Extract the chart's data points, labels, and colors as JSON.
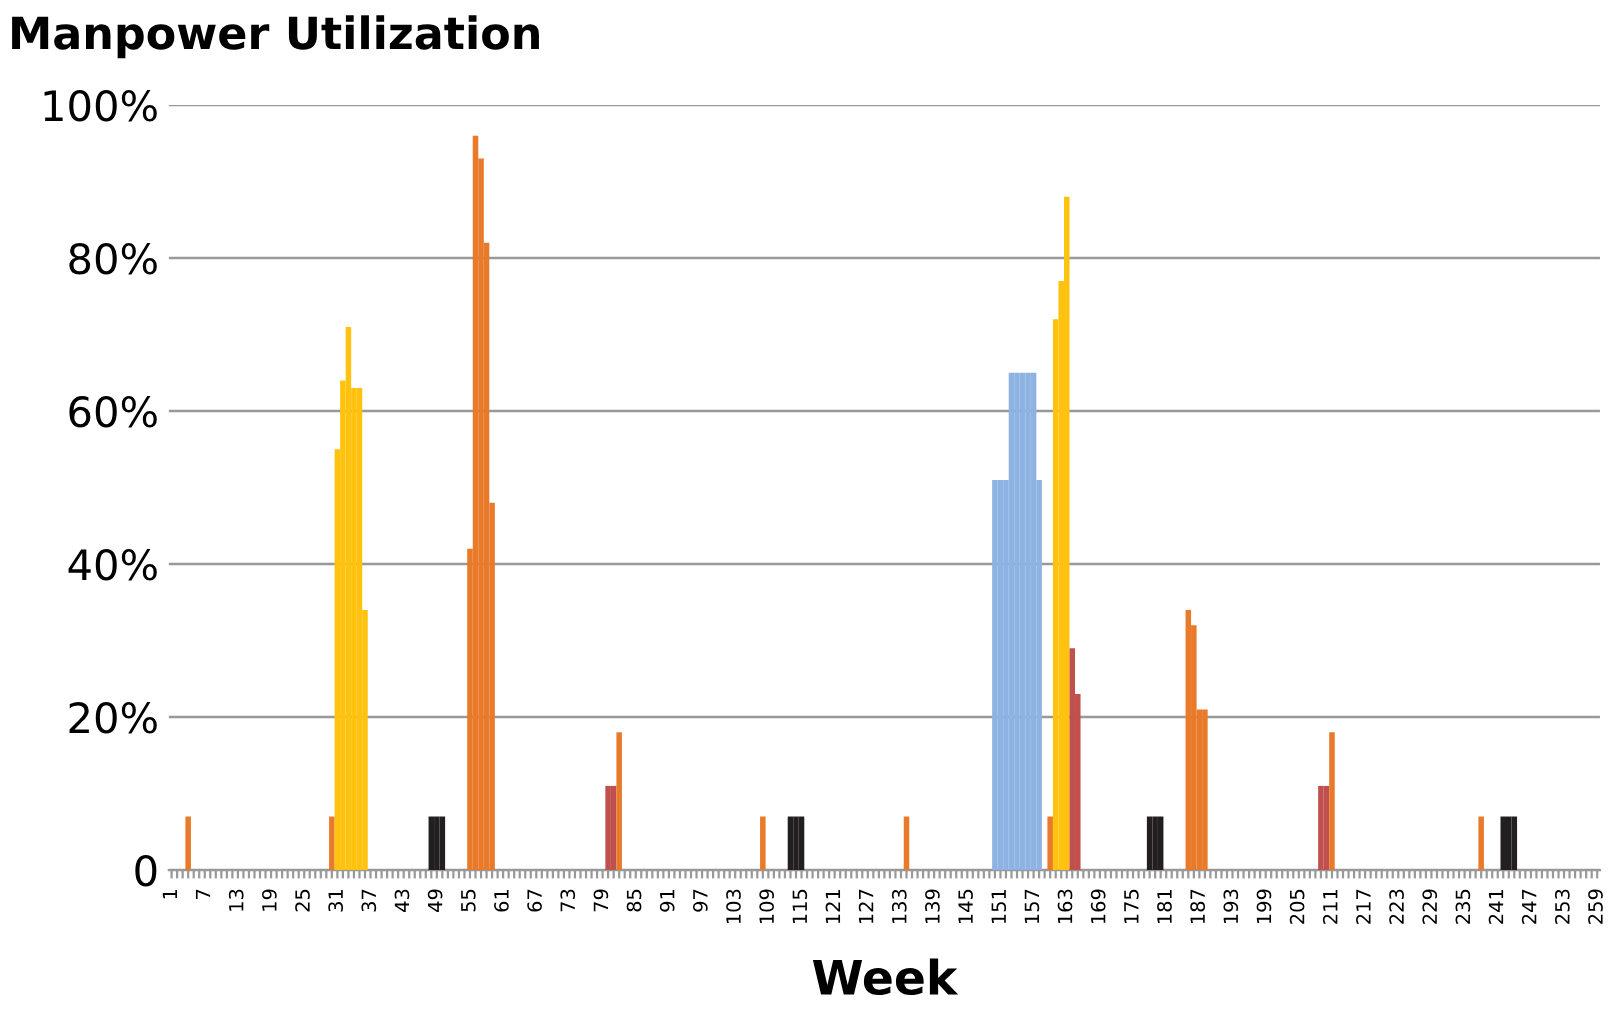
{
  "chart_data": {
    "type": "bar",
    "title": "Manpower Utilization",
    "xlabel": "Week",
    "categories": [
      "1",
      null,
      null,
      null,
      null,
      null,
      "7",
      null,
      null,
      null,
      null,
      null,
      "13",
      null,
      null,
      null,
      null,
      null,
      "19",
      null,
      null,
      null,
      null,
      null,
      "25",
      null,
      null,
      null,
      null,
      null,
      "31",
      null,
      null,
      null,
      null,
      null,
      "37",
      null,
      null,
      null,
      null,
      null,
      "43",
      null,
      null,
      null,
      null,
      null,
      "49",
      null,
      null,
      null,
      null,
      null,
      "55",
      null,
      null,
      null,
      null,
      null,
      "61",
      null,
      null,
      null,
      null,
      null,
      "67",
      null,
      null,
      null,
      null,
      null,
      "73",
      null,
      null,
      null,
      null,
      null,
      "79",
      null,
      null,
      null,
      null,
      null,
      "85",
      null,
      null,
      null,
      null,
      null,
      "91",
      null,
      null,
      null,
      null,
      null,
      "97",
      null,
      null,
      null,
      null,
      null,
      "103",
      null,
      null,
      null,
      null,
      null,
      "109",
      null,
      null,
      null,
      null,
      null,
      "115",
      null,
      null,
      null,
      null,
      null,
      "121",
      null,
      null,
      null,
      null,
      null,
      "127",
      null,
      null,
      null,
      null,
      null,
      "133",
      null,
      null,
      null,
      null,
      null,
      "139",
      null,
      null,
      null,
      null,
      null,
      "145",
      null,
      null,
      null,
      null,
      null,
      "151",
      null,
      null,
      null,
      null,
      null,
      "157",
      null,
      null,
      null,
      null,
      null,
      "163",
      null,
      null,
      null,
      null,
      null,
      "169",
      null,
      null,
      null,
      null,
      null,
      "175",
      null,
      null,
      null,
      null,
      null,
      "181",
      null,
      null,
      null,
      null,
      null,
      "187",
      null,
      null,
      null,
      null,
      null,
      "193",
      null,
      null,
      null,
      null,
      null,
      "199",
      null,
      null,
      null,
      null,
      null,
      "205",
      null,
      null,
      null,
      null,
      null,
      "211",
      null,
      null,
      null,
      null,
      null,
      "217",
      null,
      null,
      null,
      null,
      null,
      "223",
      null,
      null,
      null,
      null,
      null,
      "229",
      null,
      null,
      null,
      null,
      null,
      "235",
      null,
      null,
      null,
      null,
      null,
      "241",
      null,
      null,
      null,
      null,
      null,
      "247",
      null,
      null,
      null,
      null,
      null,
      "253",
      null,
      null,
      null,
      null,
      null,
      "259"
    ],
    "values": [
      0,
      0,
      0,
      7,
      0,
      0,
      0,
      0,
      0,
      0,
      0,
      0,
      0,
      0,
      0,
      0,
      0,
      0,
      0,
      0,
      0,
      0,
      0,
      0,
      0,
      0,
      0,
      0,
      0,
      7,
      55,
      64,
      71,
      63,
      63,
      34,
      0,
      0,
      0,
      0,
      0,
      0,
      0,
      0,
      0,
      0,
      0,
      7,
      7,
      7,
      0,
      0,
      0,
      0,
      42,
      96,
      93,
      82,
      48,
      0,
      0,
      0,
      0,
      0,
      0,
      0,
      0,
      0,
      0,
      0,
      0,
      0,
      0,
      0,
      0,
      0,
      0,
      0,
      0,
      11,
      11,
      18,
      0,
      0,
      0,
      0,
      0,
      0,
      0,
      0,
      0,
      0,
      0,
      0,
      0,
      0,
      0,
      0,
      0,
      0,
      0,
      0,
      0,
      0,
      0,
      0,
      0,
      7,
      0,
      0,
      0,
      0,
      7,
      7,
      7,
      0,
      0,
      0,
      0,
      0,
      0,
      0,
      0,
      0,
      0,
      0,
      0,
      0,
      0,
      0,
      0,
      0,
      0,
      7,
      0,
      0,
      0,
      0,
      0,
      0,
      0,
      0,
      0,
      0,
      0,
      0,
      0,
      0,
      0,
      51,
      51,
      51,
      65,
      65,
      65,
      65,
      65,
      51,
      0,
      7,
      72,
      77,
      88,
      29,
      23,
      0,
      0,
      0,
      0,
      0,
      0,
      0,
      0,
      0,
      0,
      0,
      0,
      7,
      7,
      7,
      0,
      0,
      0,
      0,
      34,
      32,
      21,
      21,
      0,
      0,
      0,
      0,
      0,
      0,
      0,
      0,
      0,
      0,
      0,
      0,
      0,
      0,
      0,
      0,
      0,
      0,
      0,
      0,
      11,
      11,
      18,
      0,
      0,
      0,
      0,
      0,
      0,
      0,
      0,
      0,
      0,
      0,
      0,
      0,
      0,
      0,
      0,
      0,
      0,
      0,
      0,
      0,
      0,
      0,
      0,
      0,
      0,
      7,
      0,
      0,
      0,
      7,
      7,
      7,
      0,
      0,
      0,
      0,
      0,
      0,
      0,
      0,
      0,
      0,
      0,
      0,
      0,
      0,
      0
    ],
    "colors": [
      "#e87a2a",
      "#e87a2a",
      "#e87a2a",
      "#e87a2a",
      "#e87a2a",
      "#e87a2a",
      "#e87a2a",
      "#e87a2a",
      "#e87a2a",
      "#e87a2a",
      "#e87a2a",
      "#e87a2a",
      "#e87a2a",
      "#e87a2a",
      "#e87a2a",
      "#e87a2a",
      "#e87a2a",
      "#e87a2a",
      "#e87a2a",
      "#e87a2a",
      "#e87a2a",
      "#e87a2a",
      "#e87a2a",
      "#e87a2a",
      "#e87a2a",
      "#e87a2a",
      "#e87a2a",
      "#e87a2a",
      "#e87a2a",
      "#e87a2a",
      "#ffc20e",
      "#ffc20e",
      "#ffc20e",
      "#ffc20e",
      "#ffc20e",
      "#ffc20e",
      "#e87a2a",
      "#e87a2a",
      "#e87a2a",
      "#e87a2a",
      "#e87a2a",
      "#e87a2a",
      "#e87a2a",
      "#e87a2a",
      "#e87a2a",
      "#e87a2a",
      "#e87a2a",
      "#231f20",
      "#231f20",
      "#231f20",
      "#e87a2a",
      "#e87a2a",
      "#e87a2a",
      "#e87a2a",
      "#e87a2a",
      "#e87a2a",
      "#e87a2a",
      "#e87a2a",
      "#e87a2a",
      "#e87a2a",
      "#e87a2a",
      "#e87a2a",
      "#e87a2a",
      "#e87a2a",
      "#e87a2a",
      "#e87a2a",
      "#e87a2a",
      "#e87a2a",
      "#e87a2a",
      "#e87a2a",
      "#e87a2a",
      "#e87a2a",
      "#e87a2a",
      "#e87a2a",
      "#e87a2a",
      "#e87a2a",
      "#e87a2a",
      "#e87a2a",
      "#e87a2a",
      "#c0504d",
      "#c0504d",
      "#e87a2a",
      "#e87a2a",
      "#e87a2a",
      "#e87a2a",
      "#e87a2a",
      "#e87a2a",
      "#e87a2a",
      "#e87a2a",
      "#e87a2a",
      "#e87a2a",
      "#e87a2a",
      "#e87a2a",
      "#e87a2a",
      "#e87a2a",
      "#e87a2a",
      "#e87a2a",
      "#e87a2a",
      "#e87a2a",
      "#e87a2a",
      "#e87a2a",
      "#e87a2a",
      "#e87a2a",
      "#e87a2a",
      "#e87a2a",
      "#e87a2a",
      "#e87a2a",
      "#e87a2a",
      "#e87a2a",
      "#e87a2a",
      "#e87a2a",
      "#e87a2a",
      "#231f20",
      "#231f20",
      "#231f20",
      "#e87a2a",
      "#e87a2a",
      "#e87a2a",
      "#e87a2a",
      "#e87a2a",
      "#e87a2a",
      "#e87a2a",
      "#e87a2a",
      "#e87a2a",
      "#e87a2a",
      "#e87a2a",
      "#e87a2a",
      "#e87a2a",
      "#e87a2a",
      "#e87a2a",
      "#e87a2a",
      "#e87a2a",
      "#e87a2a",
      "#e87a2a",
      "#e87a2a",
      "#e87a2a",
      "#e87a2a",
      "#e87a2a",
      "#e87a2a",
      "#e87a2a",
      "#e87a2a",
      "#e87a2a",
      "#e87a2a",
      "#e87a2a",
      "#e87a2a",
      "#e87a2a",
      "#e87a2a",
      "#e87a2a",
      "#e87a2a",
      "#8db3e2",
      "#8db3e2",
      "#8db3e2",
      "#8db3e2",
      "#8db3e2",
      "#8db3e2",
      "#8db3e2",
      "#8db3e2",
      "#8db3e2",
      "#e87a2a",
      "#e87a2a",
      "#ffc20e",
      "#ffc20e",
      "#ffc20e",
      "#c0504d",
      "#c0504d",
      "#e87a2a",
      "#e87a2a",
      "#e87a2a",
      "#e87a2a",
      "#e87a2a",
      "#e87a2a",
      "#e87a2a",
      "#e87a2a",
      "#e87a2a",
      "#e87a2a",
      "#e87a2a",
      "#e87a2a",
      "#231f20",
      "#231f20",
      "#231f20",
      "#e87a2a",
      "#e87a2a",
      "#e87a2a",
      "#e87a2a",
      "#e87a2a",
      "#e87a2a",
      "#e87a2a",
      "#e87a2a",
      "#e87a2a",
      "#e87a2a",
      "#e87a2a",
      "#e87a2a",
      "#e87a2a",
      "#e87a2a",
      "#e87a2a",
      "#e87a2a",
      "#e87a2a",
      "#e87a2a",
      "#e87a2a",
      "#e87a2a",
      "#e87a2a",
      "#e87a2a",
      "#e87a2a",
      "#e87a2a",
      "#e87a2a",
      "#e87a2a",
      "#e87a2a",
      "#e87a2a",
      "#c0504d",
      "#c0504d",
      "#e87a2a",
      "#e87a2a",
      "#e87a2a",
      "#e87a2a",
      "#e87a2a",
      "#e87a2a",
      "#e87a2a",
      "#e87a2a",
      "#e87a2a",
      "#e87a2a",
      "#e87a2a",
      "#e87a2a",
      "#e87a2a",
      "#e87a2a",
      "#e87a2a",
      "#e87a2a",
      "#e87a2a",
      "#e87a2a",
      "#e87a2a",
      "#e87a2a",
      "#e87a2a",
      "#e87a2a",
      "#e87a2a",
      "#e87a2a",
      "#e87a2a",
      "#e87a2a",
      "#e87a2a",
      "#e87a2a",
      "#e87a2a",
      "#e87a2a",
      "#e87a2a",
      "#231f20",
      "#231f20",
      "#231f20",
      "#e87a2a",
      "#e87a2a",
      "#e87a2a",
      "#e87a2a",
      "#e87a2a",
      "#e87a2a",
      "#e87a2a",
      "#e87a2a",
      "#e87a2a",
      "#e87a2a",
      "#e87a2a",
      "#e87a2a",
      "#e87a2a",
      "#e87a2a",
      "#e87a2a"
    ],
    "ylim": [
      0,
      100
    ],
    "yticks": [
      {
        "value": 0,
        "label": "0"
      },
      {
        "value": 20,
        "label": "20%"
      },
      {
        "value": 40,
        "label": "40%"
      },
      {
        "value": 60,
        "label": "60%"
      },
      {
        "value": 80,
        "label": "80%"
      },
      {
        "value": 100,
        "label": "100%"
      }
    ],
    "grid": "y"
  }
}
